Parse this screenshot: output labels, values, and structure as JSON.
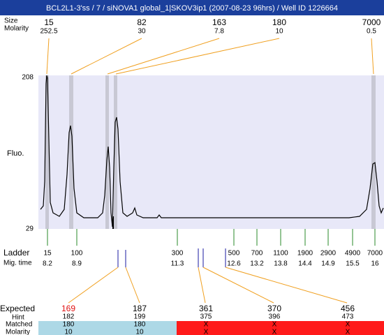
{
  "title": "BCL2L1-3'ss / 7 / siNOVA1 global_1|SKOV3ip1 (2007-08-23 96hrs) / Well ID 1226664",
  "peaks": {
    "size_label": "Size",
    "molarity_label": "Molarity",
    "items": [
      {
        "size": "15",
        "molarity": "252.5"
      },
      {
        "size": "82",
        "molarity": "30"
      },
      {
        "size": "163",
        "molarity": "7.8"
      },
      {
        "size": "180",
        "molarity": "10"
      },
      {
        "size": "7000",
        "molarity": "0.5"
      }
    ]
  },
  "y_axis": {
    "label": "Fluo.",
    "top": "208",
    "bottom": "29"
  },
  "ladder": {
    "label": "Ladder",
    "time_label": "Mig. time",
    "items": [
      {
        "size": "15",
        "time": "8.2"
      },
      {
        "size": "100",
        "time": "8.9"
      },
      {
        "size": "300",
        "time": "11.3"
      },
      {
        "size": "500",
        "time": "12.6"
      },
      {
        "size": "700",
        "time": "13.2"
      },
      {
        "size": "1100",
        "time": "13.8"
      },
      {
        "size": "1900",
        "time": "14.4"
      },
      {
        "size": "2900",
        "time": "14.9"
      },
      {
        "size": "4900",
        "time": "15.5"
      },
      {
        "size": "7000",
        "time": "16"
      }
    ]
  },
  "expected": {
    "label": "Expected",
    "hint_label": "Hint",
    "matched_label": "Matched",
    "molarity_label": "Molarity",
    "items": [
      {
        "expected": "169",
        "hint": "182",
        "matched": "180",
        "molarity": "10"
      },
      {
        "expected": "187",
        "hint": "199",
        "matched": "180",
        "molarity": "10"
      },
      {
        "expected": "361",
        "hint": "375",
        "matched": "X",
        "molarity": "X"
      },
      {
        "expected": "370",
        "hint": "396",
        "matched": "X",
        "molarity": "X"
      },
      {
        "expected": "456",
        "hint": "473",
        "matched": "X",
        "molarity": "X"
      }
    ]
  }
}
